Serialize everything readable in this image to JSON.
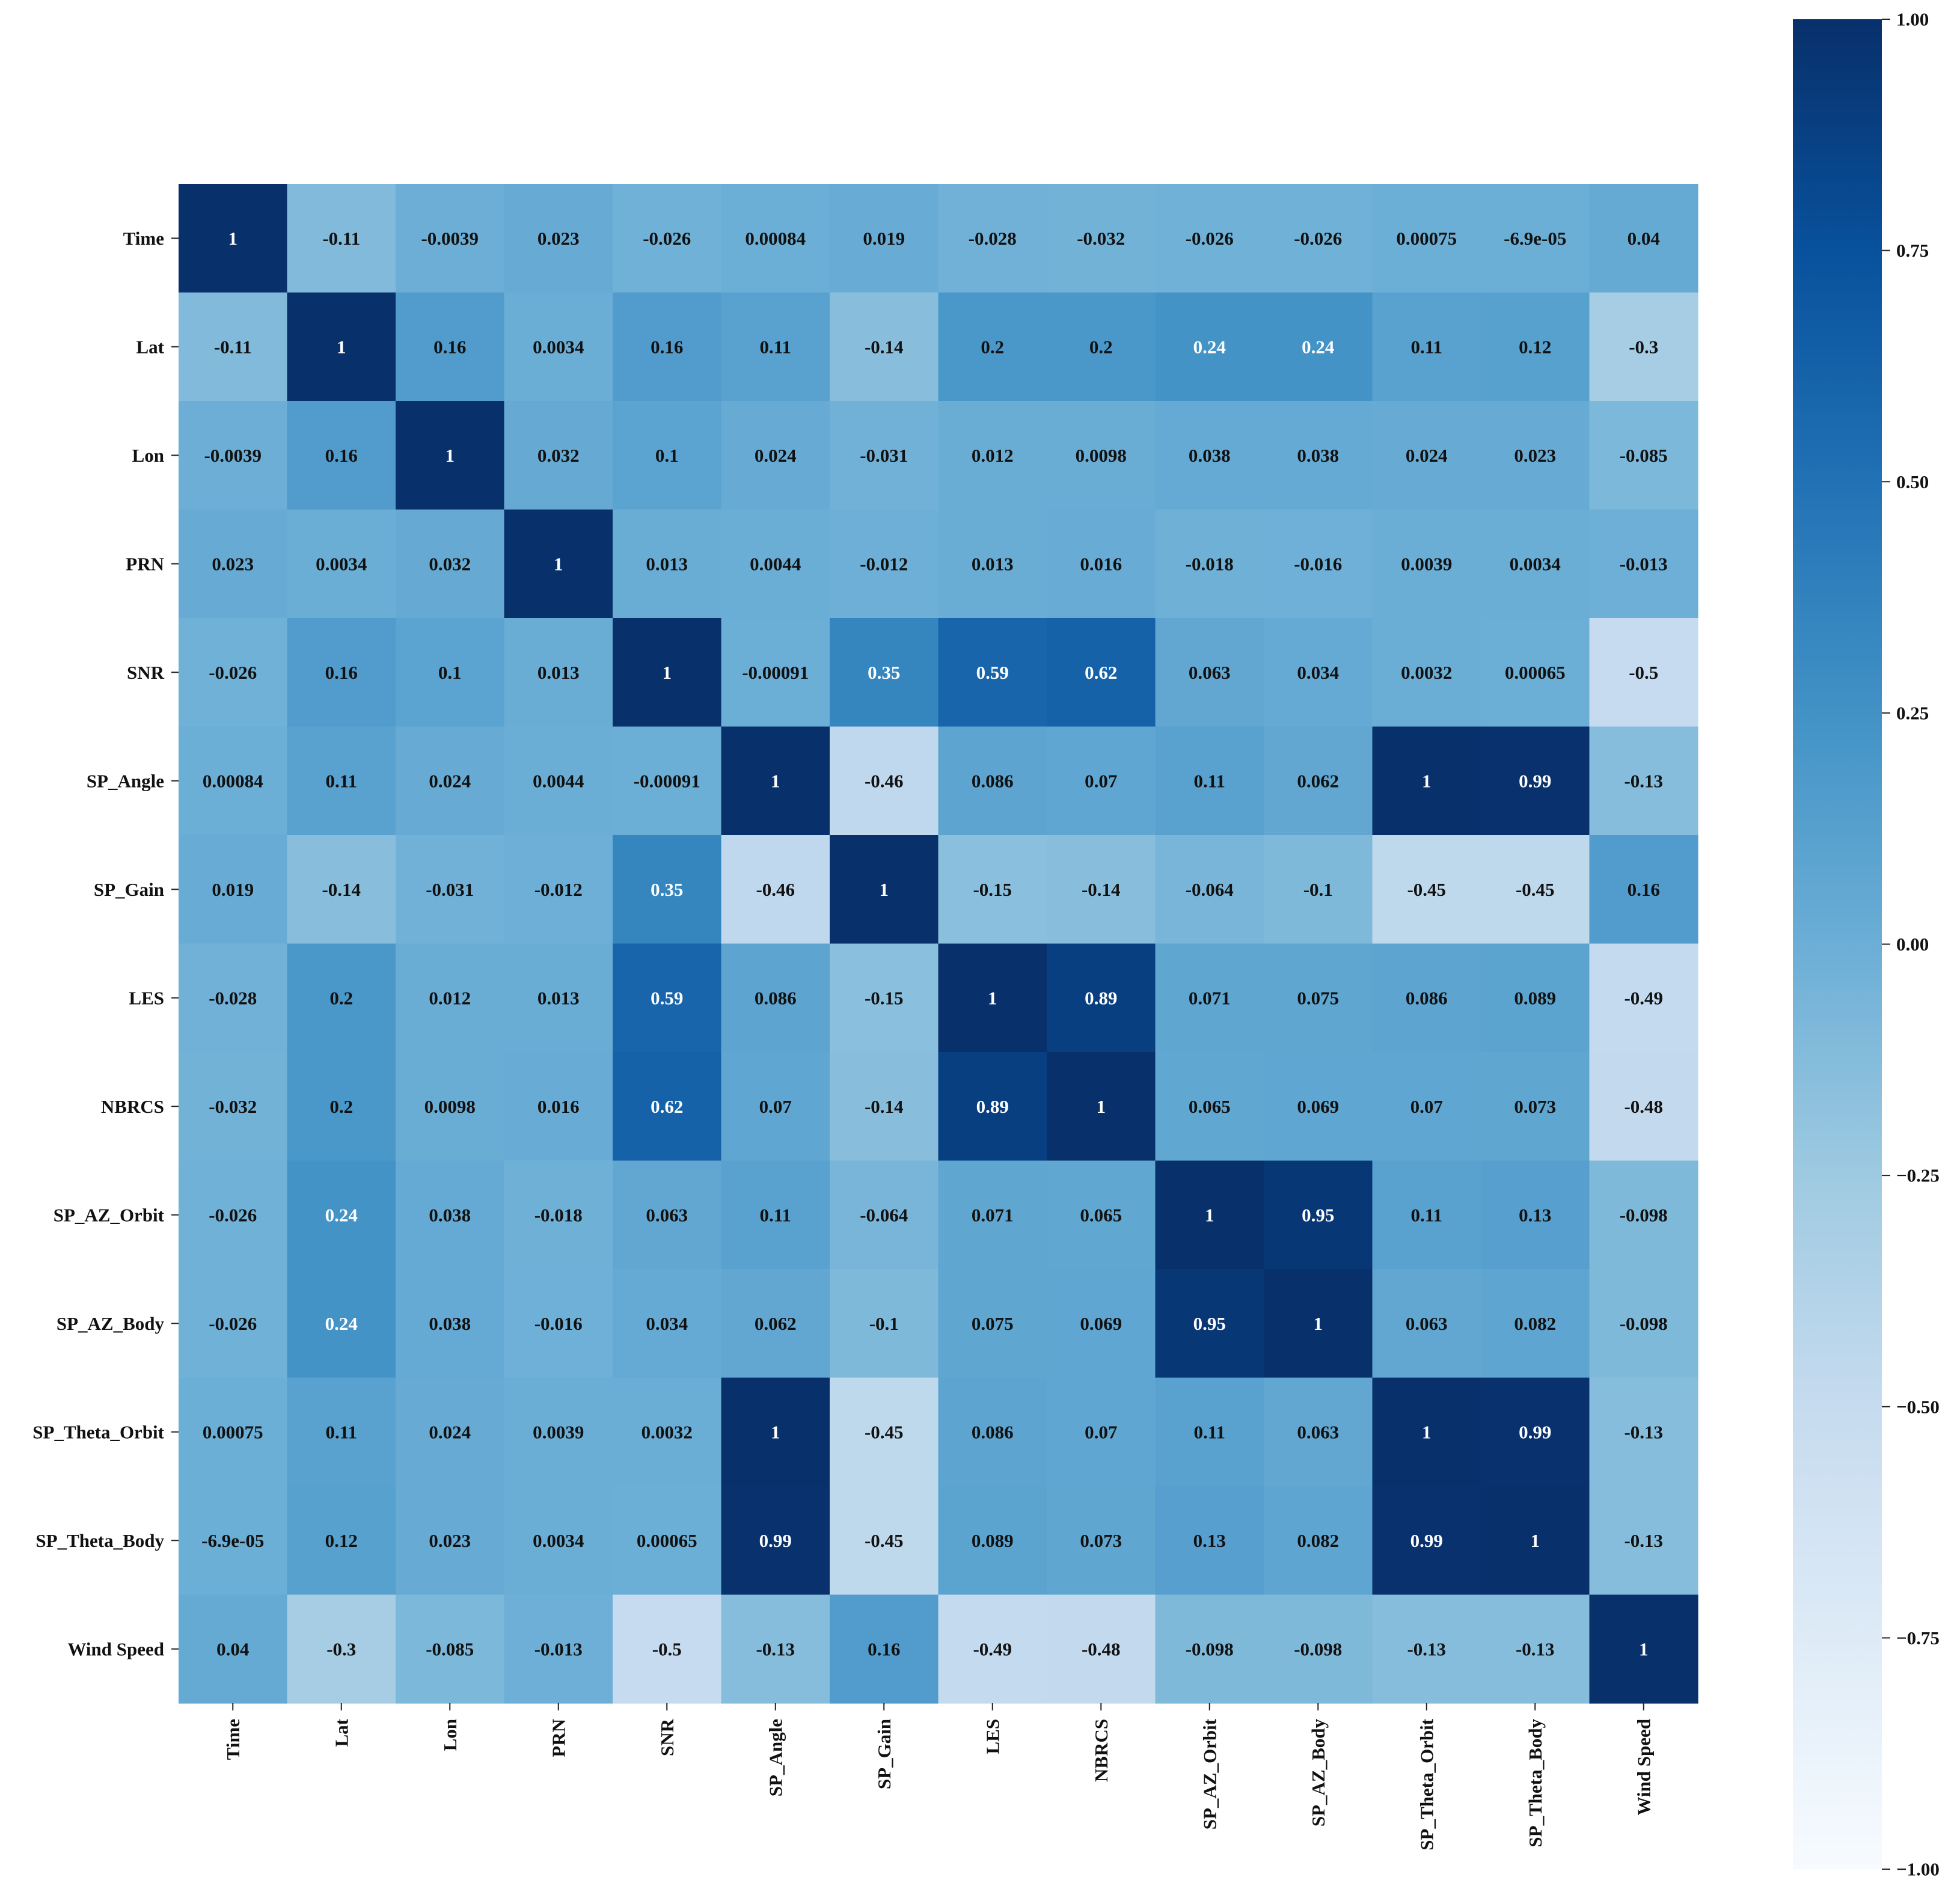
{
  "chart_data": {
    "type": "heatmap",
    "title": "",
    "colormap": "Blues",
    "vmin": -1.0,
    "vmax": 1.0,
    "labels": [
      "Time",
      "Lat",
      "Lon",
      "PRN",
      "SNR",
      "SP_Angle",
      "SP_Gain",
      "LES",
      "NBRCS",
      "SP_AZ_Orbit",
      "SP_AZ_Body",
      "SP_Theta_Orbit",
      "SP_Theta_Body",
      "Wind Speed"
    ],
    "annotations": [
      [
        "1",
        "-0.11",
        "-0.0039",
        "0.023",
        "-0.026",
        "0.00084",
        "0.019",
        "-0.028",
        "-0.032",
        "-0.026",
        "-0.026",
        "0.00075",
        "-6.9e-05",
        "0.04"
      ],
      [
        "-0.11",
        "1",
        "0.16",
        "0.0034",
        "0.16",
        "0.11",
        "-0.14",
        "0.2",
        "0.2",
        "0.24",
        "0.24",
        "0.11",
        "0.12",
        "-0.3"
      ],
      [
        "-0.0039",
        "0.16",
        "1",
        "0.032",
        "0.1",
        "0.024",
        "-0.031",
        "0.012",
        "0.0098",
        "0.038",
        "0.038",
        "0.024",
        "0.023",
        "-0.085"
      ],
      [
        "0.023",
        "0.0034",
        "0.032",
        "1",
        "0.013",
        "0.0044",
        "-0.012",
        "0.013",
        "0.016",
        "-0.018",
        "-0.016",
        "0.0039",
        "0.0034",
        "-0.013"
      ],
      [
        "-0.026",
        "0.16",
        "0.1",
        "0.013",
        "1",
        "-0.00091",
        "0.35",
        "0.59",
        "0.62",
        "0.063",
        "0.034",
        "0.0032",
        "0.00065",
        "-0.5"
      ],
      [
        "0.00084",
        "0.11",
        "0.024",
        "0.0044",
        "-0.00091",
        "1",
        "-0.46",
        "0.086",
        "0.07",
        "0.11",
        "0.062",
        "1",
        "0.99",
        "-0.13"
      ],
      [
        "0.019",
        "-0.14",
        "-0.031",
        "-0.012",
        "0.35",
        "-0.46",
        "1",
        "-0.15",
        "-0.14",
        "-0.064",
        "-0.1",
        "-0.45",
        "-0.45",
        "0.16"
      ],
      [
        "-0.028",
        "0.2",
        "0.012",
        "0.013",
        "0.59",
        "0.086",
        "-0.15",
        "1",
        "0.89",
        "0.071",
        "0.075",
        "0.086",
        "0.089",
        "-0.49"
      ],
      [
        "-0.032",
        "0.2",
        "0.0098",
        "0.016",
        "0.62",
        "0.07",
        "-0.14",
        "0.89",
        "1",
        "0.065",
        "0.069",
        "0.07",
        "0.073",
        "-0.48"
      ],
      [
        "-0.026",
        "0.24",
        "0.038",
        "-0.018",
        "0.063",
        "0.11",
        "-0.064",
        "0.071",
        "0.065",
        "1",
        "0.95",
        "0.11",
        "0.13",
        "-0.098"
      ],
      [
        "-0.026",
        "0.24",
        "0.038",
        "-0.016",
        "0.034",
        "0.062",
        "-0.1",
        "0.075",
        "0.069",
        "0.95",
        "1",
        "0.063",
        "0.082",
        "-0.098"
      ],
      [
        "0.00075",
        "0.11",
        "0.024",
        "0.0039",
        "0.0032",
        "1",
        "-0.45",
        "0.086",
        "0.07",
        "0.11",
        "0.063",
        "1",
        "0.99",
        "-0.13"
      ],
      [
        "-6.9e-05",
        "0.12",
        "0.023",
        "0.0034",
        "0.00065",
        "0.99",
        "-0.45",
        "0.089",
        "0.073",
        "0.13",
        "0.082",
        "0.99",
        "1",
        "-0.13"
      ],
      [
        "0.04",
        "-0.3",
        "-0.085",
        "-0.013",
        "-0.5",
        "-0.13",
        "0.16",
        "-0.49",
        "-0.48",
        "-0.098",
        "-0.098",
        "-0.13",
        "-0.13",
        "1"
      ]
    ],
    "colorbar": {
      "ticks": [
        1.0,
        0.75,
        0.5,
        0.25,
        0.0,
        -0.25,
        -0.5,
        -0.75,
        -1.0
      ],
      "tick_labels": [
        "1.00",
        "0.75",
        "0.50",
        "0.25",
        "0.00",
        "−0.25",
        "−0.50",
        "−0.75",
        "−1.00"
      ]
    }
  }
}
